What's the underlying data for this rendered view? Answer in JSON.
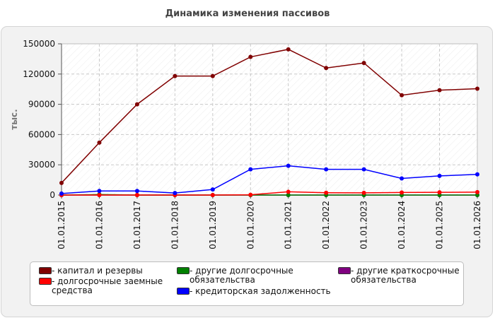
{
  "chart_data": {
    "type": "line",
    "title": "Динамика изменения пассивов",
    "ylabel": "тыс.",
    "xlabel": "",
    "ylim": [
      0,
      150000
    ],
    "yticks": [
      "0",
      "30000",
      "60000",
      "90000",
      "120000",
      "150000"
    ],
    "categories": [
      "01.01.2015",
      "01.01.2016",
      "01.01.2017",
      "01.01.2018",
      "01.01.2019",
      "01.01.2020",
      "01.01.2021",
      "01.01.2022",
      "01.01.2023",
      "01.01.2024",
      "01.01.2025",
      "01.01.2026"
    ],
    "grid": true,
    "legend_position": "bottom",
    "series": [
      {
        "name": "капитал и резервы",
        "color": "#800000",
        "values": [
          12000,
          52000,
          90000,
          118000,
          118000,
          137000,
          144500,
          126000,
          131000,
          99000,
          104000,
          105500
        ]
      },
      {
        "name": "долгосрочные заемные средства",
        "color": "#ff0000",
        "values": [
          0,
          0,
          0,
          0,
          0,
          300,
          3200,
          2300,
          2200,
          2500,
          2700,
          2900
        ]
      },
      {
        "name": "другие долгосрочные обязательства",
        "color": "#008000",
        "values": [
          0,
          500,
          0,
          0,
          0,
          0,
          0,
          0,
          0,
          0,
          0,
          0
        ]
      },
      {
        "name": "кредиторская задолженность",
        "color": "#0000ff",
        "values": [
          1500,
          4000,
          4000,
          2000,
          5500,
          25500,
          29000,
          25500,
          25500,
          16500,
          19000,
          20500
        ]
      },
      {
        "name": "другие краткосрочные обязательства",
        "color": "#800080",
        "values": [
          0,
          0,
          0,
          0,
          0,
          0,
          0,
          0,
          0,
          0,
          0,
          0
        ]
      }
    ]
  },
  "legend": {
    "prefix": "- ",
    "items": [
      {
        "series": 0,
        "label": "капитал и резервы"
      },
      {
        "series": 1,
        "label": "долгосрочные заемные средства"
      },
      {
        "series": 2,
        "label": "другие долгосрочные обязательства"
      },
      {
        "series": 3,
        "label": "кредиторская задолженность"
      },
      {
        "series": 4,
        "label": "другие краткосрочные обязательства"
      }
    ]
  }
}
